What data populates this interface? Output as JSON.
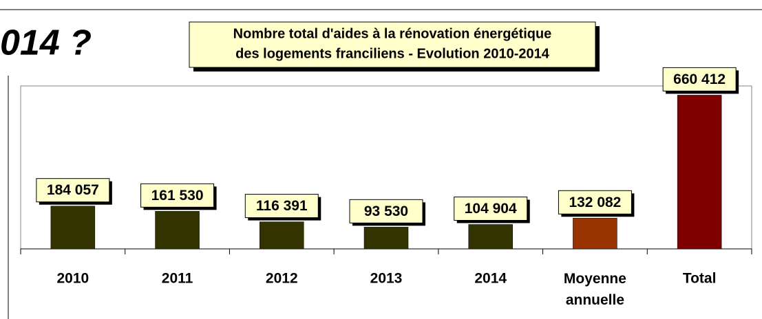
{
  "chart_data": {
    "type": "bar",
    "heading": "014 ?",
    "title": [
      "Nombre total d'aides à la rénovation énergétique",
      "des logements franciliens - Evolution 2010-2014"
    ],
    "categories": [
      "2010",
      "2011",
      "2012",
      "2013",
      "2014",
      "Moyenne annuelle",
      "Total"
    ],
    "values": [
      184057,
      161530,
      116391,
      93530,
      104904,
      132082,
      660412
    ],
    "value_labels": [
      "184 057",
      "161 530",
      "116 391",
      "93 530",
      "104 904",
      "132 082",
      "660 412"
    ],
    "colors": [
      "#333300",
      "#333300",
      "#333300",
      "#333300",
      "#333300",
      "#993300",
      "#800000"
    ],
    "ylim": [
      0,
      700000
    ]
  }
}
